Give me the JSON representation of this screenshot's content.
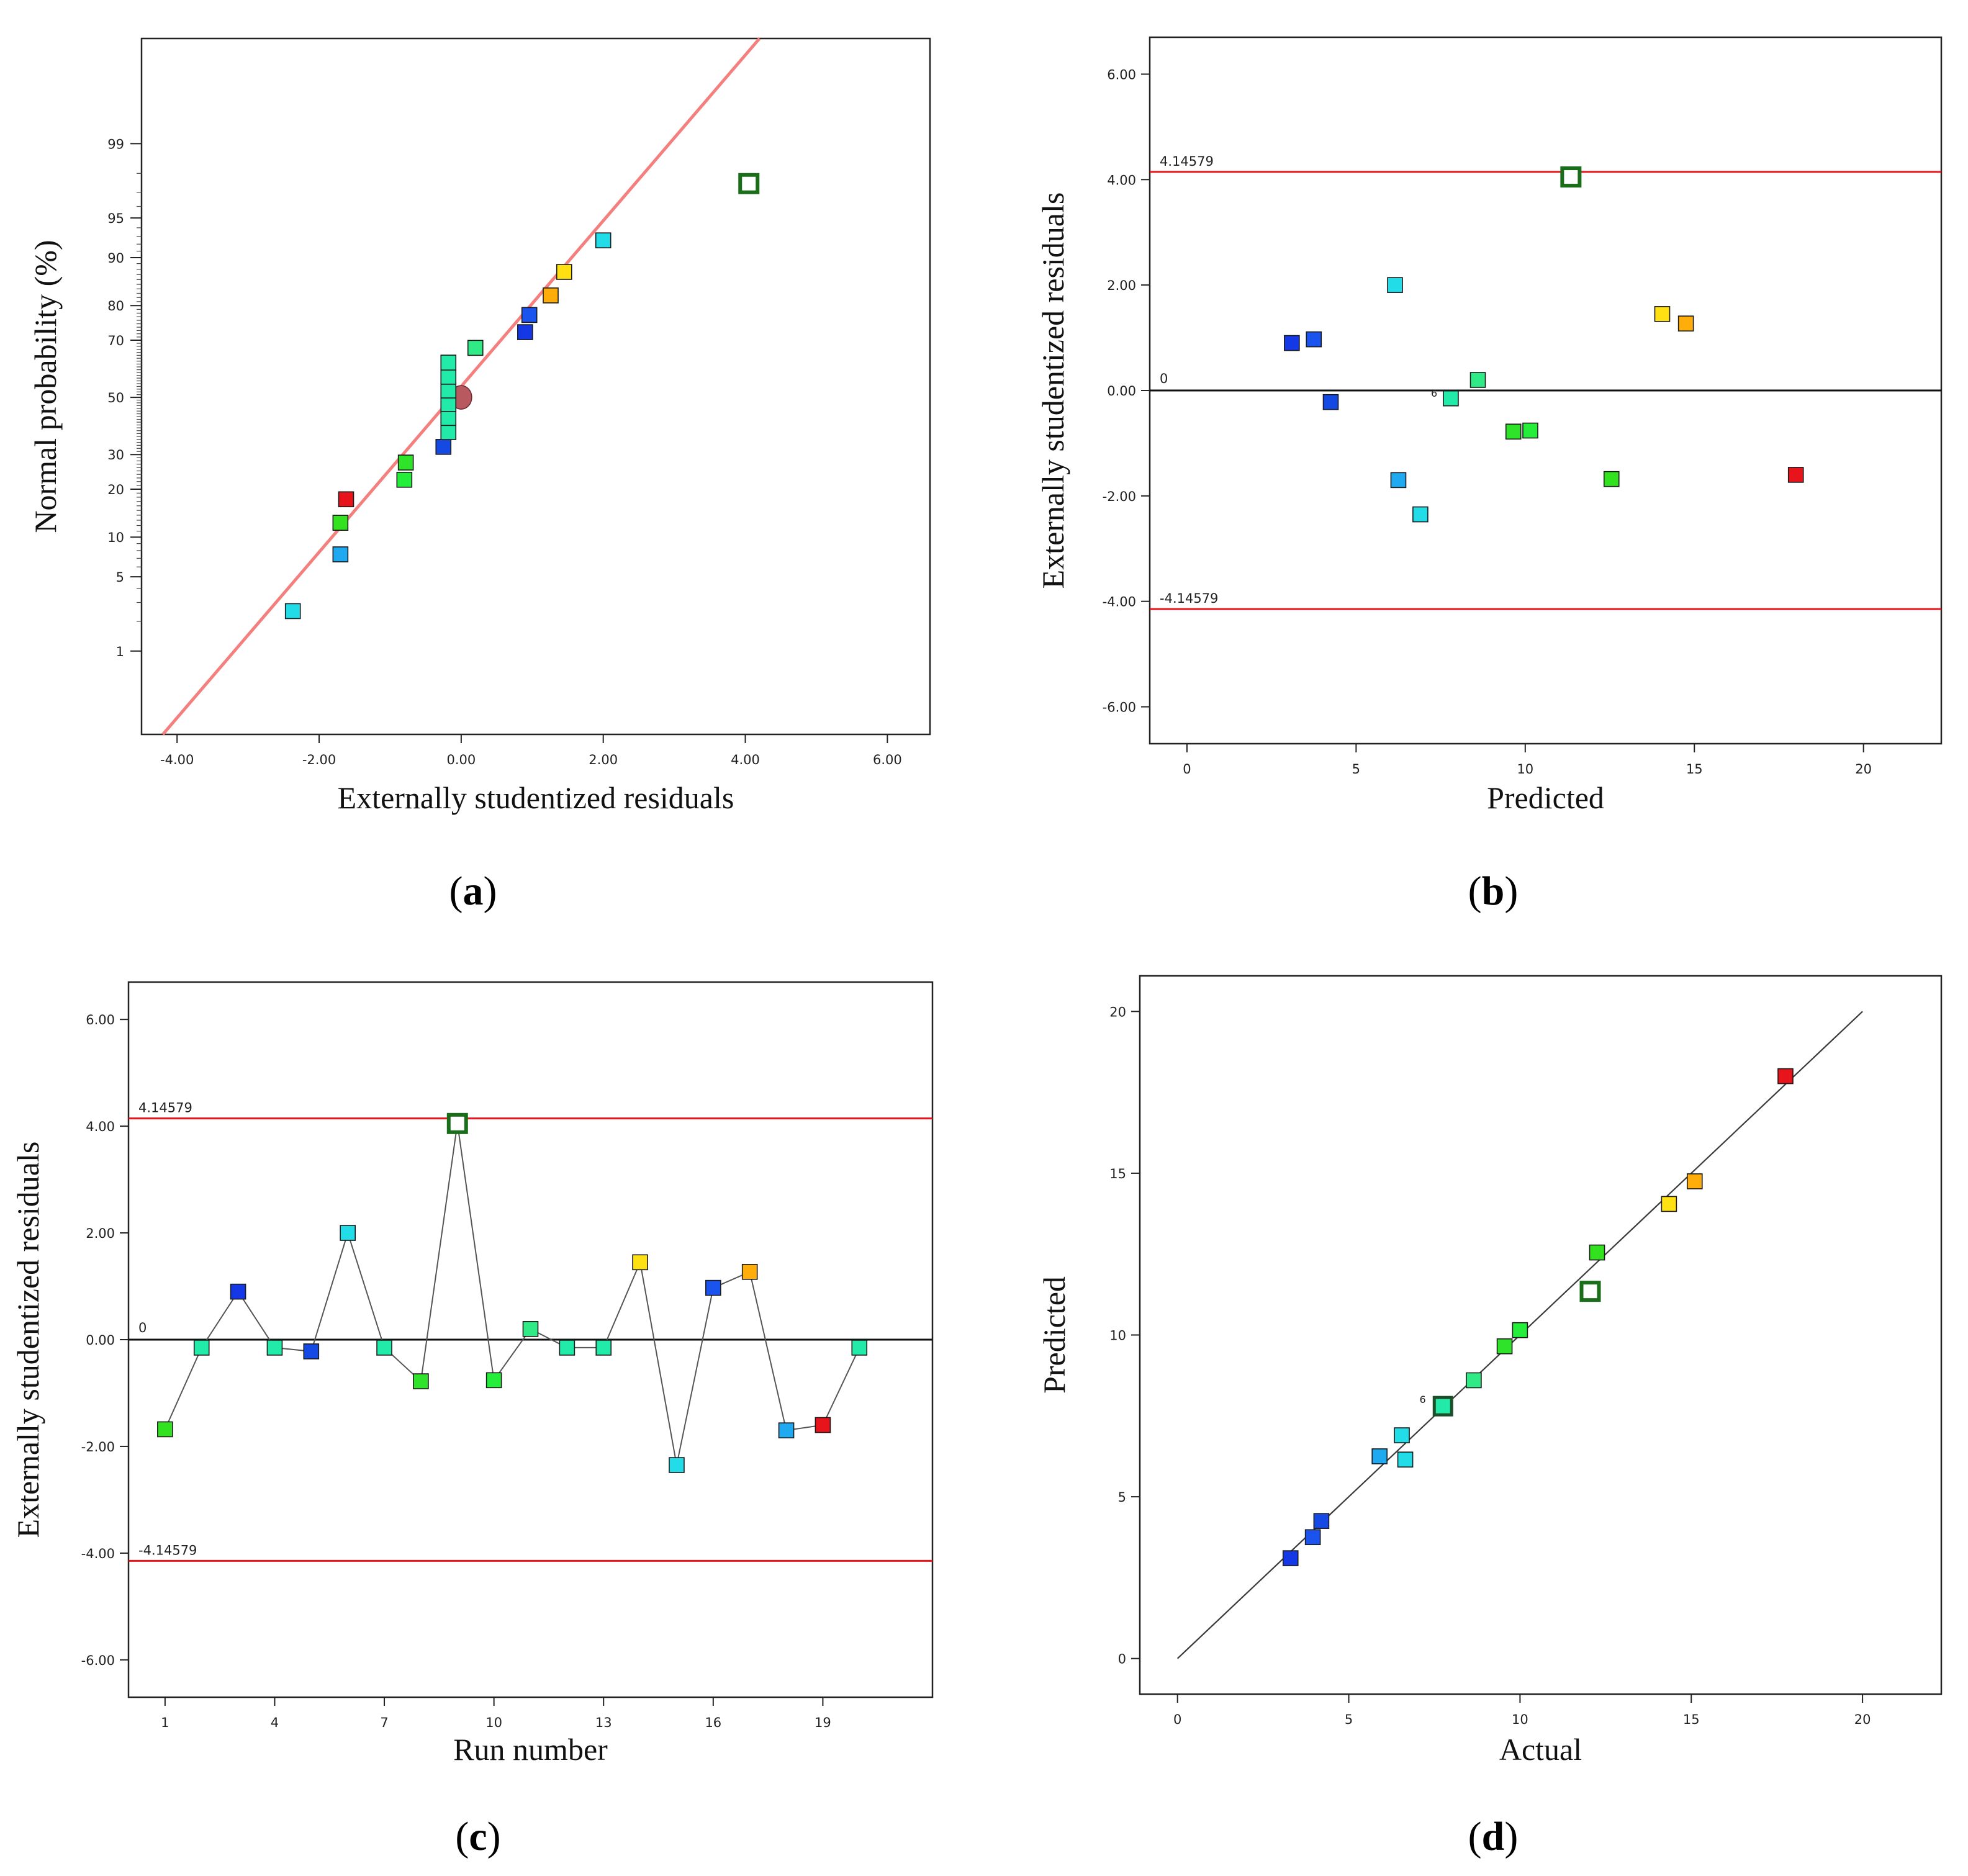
{
  "colors": {
    "red_line": "#e8141c",
    "fit_line": "#f47f7f",
    "zero_line": "#111111",
    "outlier_edge": "#1a6e1a"
  },
  "chart_data": [
    {
      "id": "a",
      "type": "scatter",
      "panel_label": "a",
      "xlabel": "Externally studentized residuals",
      "ylabel": "Normal probability (%)",
      "xlim": [
        -4.5,
        6.6
      ],
      "x_ticks": [
        -4,
        -2,
        0,
        2,
        4,
        6
      ],
      "x_tick_labels": [
        "-4.00",
        "-2.00",
        "0.00",
        "2.00",
        "4.00",
        "6.00"
      ],
      "y_scale": "probit",
      "ylim_percent": [
        0.1,
        99.95
      ],
      "y_ticks": [
        1,
        5,
        10,
        20,
        30,
        50,
        70,
        80,
        90,
        95,
        99
      ],
      "y_tick_labels": [
        "1",
        "5",
        "10",
        "20",
        "30",
        "50",
        "70",
        "80",
        "90",
        "95",
        "99"
      ],
      "fit_line": {
        "x1": -4.2,
        "x2": 4.2
      },
      "median_marker": {
        "x": 0.0,
        "y": 50,
        "color": "#b8585f"
      },
      "points": [
        {
          "x": -2.37,
          "y": 2.5,
          "color": "#22dde8"
        },
        {
          "x": -1.7,
          "y": 7.5,
          "color": "#1fa9f0"
        },
        {
          "x": -1.7,
          "y": 12.5,
          "color": "#33e21f"
        },
        {
          "x": -1.62,
          "y": 17.5,
          "color": "#e8141c"
        },
        {
          "x": -0.8,
          "y": 22.5,
          "color": "#24ee3a"
        },
        {
          "x": -0.78,
          "y": 27.5,
          "color": "#2fe22a"
        },
        {
          "x": -0.25,
          "y": 32.5,
          "color": "#1449e3"
        },
        {
          "x": -0.18,
          "y": 37.5,
          "color": "#22eaa8"
        },
        {
          "x": -0.18,
          "y": 42.5,
          "color": "#22eaa8"
        },
        {
          "x": -0.18,
          "y": 47.5,
          "color": "#22eaa8"
        },
        {
          "x": -0.18,
          "y": 52.5,
          "color": "#22eaa8"
        },
        {
          "x": -0.18,
          "y": 57.5,
          "color": "#22eaa8"
        },
        {
          "x": -0.18,
          "y": 62.5,
          "color": "#22eaa8"
        },
        {
          "x": 0.2,
          "y": 67.5,
          "color": "#30ea86"
        },
        {
          "x": 0.9,
          "y": 72.5,
          "color": "#1438e6"
        },
        {
          "x": 0.96,
          "y": 77.5,
          "color": "#1b53ee"
        },
        {
          "x": 1.26,
          "y": 82.5,
          "color": "#ffad0a"
        },
        {
          "x": 1.45,
          "y": 87.5,
          "color": "#ffe012"
        },
        {
          "x": 2.0,
          "y": 92.5,
          "color": "#22dde8"
        },
        {
          "x": 4.05,
          "y": 97.5,
          "color": "#ffffff",
          "outlier": true
        }
      ]
    },
    {
      "id": "b",
      "type": "scatter",
      "panel_label": "b",
      "xlabel": "Predicted",
      "ylabel": "Externally studentized residuals",
      "xlim": [
        -1.1,
        22.3
      ],
      "ylim": [
        -6.7,
        6.7
      ],
      "x_ticks": [
        0,
        5,
        10,
        15,
        20
      ],
      "x_tick_labels": [
        "0",
        "5",
        "10",
        "15",
        "20"
      ],
      "y_ticks": [
        -6,
        -4,
        -2,
        0,
        2,
        4,
        6
      ],
      "y_tick_labels": [
        "-6.00",
        "-4.00",
        "-2.00",
        "0.00",
        "2.00",
        "4.00",
        "6.00"
      ],
      "upper_limit": 4.14579,
      "upper_limit_label": "4.14579",
      "lower_limit": -4.14579,
      "lower_limit_label": "-4.14579",
      "zero_label": "0",
      "annotation": {
        "text": "6",
        "x": 7.4,
        "y": -0.12
      },
      "points": [
        {
          "x": 3.1,
          "y": 0.9,
          "color": "#1438e6"
        },
        {
          "x": 3.75,
          "y": 0.97,
          "color": "#1b53ee"
        },
        {
          "x": 4.25,
          "y": -0.22,
          "color": "#1449e3"
        },
        {
          "x": 6.15,
          "y": 2.0,
          "color": "#22dde8"
        },
        {
          "x": 6.25,
          "y": -1.7,
          "color": "#1fa9f0"
        },
        {
          "x": 6.9,
          "y": -2.35,
          "color": "#22dde8"
        },
        {
          "x": 7.8,
          "y": -0.15,
          "color": "#22eaa8"
        },
        {
          "x": 8.6,
          "y": 0.2,
          "color": "#30ea86"
        },
        {
          "x": 9.65,
          "y": -0.78,
          "color": "#2fe22a"
        },
        {
          "x": 10.15,
          "y": -0.76,
          "color": "#24ee3a"
        },
        {
          "x": 11.35,
          "y": 4.05,
          "color": "#ffffff",
          "outlier": true
        },
        {
          "x": 12.55,
          "y": -1.68,
          "color": "#33e21f"
        },
        {
          "x": 14.05,
          "y": 1.45,
          "color": "#ffe012"
        },
        {
          "x": 14.75,
          "y": 1.27,
          "color": "#ffad0a"
        },
        {
          "x": 18.0,
          "y": -1.6,
          "color": "#e8141c"
        }
      ]
    },
    {
      "id": "c",
      "type": "line",
      "panel_label": "c",
      "xlabel": "Run number",
      "ylabel": "Externally studentized residuals",
      "xlim": [
        0,
        22
      ],
      "ylim": [
        -6.7,
        6.7
      ],
      "x_ticks": [
        1,
        4,
        7,
        10,
        13,
        16,
        19
      ],
      "x_tick_labels": [
        "1",
        "4",
        "7",
        "10",
        "13",
        "16",
        "19"
      ],
      "y_ticks": [
        -6,
        -4,
        -2,
        0,
        2,
        4,
        6
      ],
      "y_tick_labels": [
        "-6.00",
        "-4.00",
        "-2.00",
        "0.00",
        "2.00",
        "4.00",
        "6.00"
      ],
      "upper_limit": 4.14579,
      "upper_limit_label": "4.14579",
      "lower_limit": -4.14579,
      "lower_limit_label": "-4.14579",
      "zero_label": "0",
      "points": [
        {
          "x": 1,
          "y": -1.68,
          "color": "#33e21f"
        },
        {
          "x": 2,
          "y": -0.15,
          "color": "#22eaa8"
        },
        {
          "x": 3,
          "y": 0.9,
          "color": "#1438e6"
        },
        {
          "x": 4,
          "y": -0.15,
          "color": "#22eaa8"
        },
        {
          "x": 5,
          "y": -0.22,
          "color": "#1449e3"
        },
        {
          "x": 6,
          "y": 2.0,
          "color": "#22dde8"
        },
        {
          "x": 7,
          "y": -0.15,
          "color": "#22eaa8"
        },
        {
          "x": 8,
          "y": -0.78,
          "color": "#2fe22a"
        },
        {
          "x": 9,
          "y": 4.05,
          "color": "#ffffff",
          "outlier": true
        },
        {
          "x": 10,
          "y": -0.76,
          "color": "#24ee3a"
        },
        {
          "x": 11,
          "y": 0.2,
          "color": "#30ea86"
        },
        {
          "x": 12,
          "y": -0.15,
          "color": "#22eaa8"
        },
        {
          "x": 13,
          "y": -0.15,
          "color": "#22eaa8"
        },
        {
          "x": 14,
          "y": 1.45,
          "color": "#ffe012"
        },
        {
          "x": 15,
          "y": -2.35,
          "color": "#22dde8"
        },
        {
          "x": 16,
          "y": 0.97,
          "color": "#1b53ee"
        },
        {
          "x": 17,
          "y": 1.27,
          "color": "#ffad0a"
        },
        {
          "x": 18,
          "y": -1.7,
          "color": "#1fa9f0"
        },
        {
          "x": 19,
          "y": -1.6,
          "color": "#e8141c"
        },
        {
          "x": 20,
          "y": -0.15,
          "color": "#22eaa8"
        }
      ]
    },
    {
      "id": "d",
      "type": "scatter",
      "panel_label": "d",
      "xlabel": "Actual",
      "ylabel": "Predicted",
      "xlim": [
        -1.1,
        22.3
      ],
      "ylim": [
        -1.1,
        21.1
      ],
      "x_ticks": [
        0,
        5,
        10,
        15,
        20
      ],
      "x_tick_labels": [
        "0",
        "5",
        "10",
        "15",
        "20"
      ],
      "y_ticks": [
        0,
        5,
        10,
        15,
        20
      ],
      "y_tick_labels": [
        "0",
        "5",
        "10",
        "15",
        "20"
      ],
      "diagonal": [
        0,
        20
      ],
      "annotation": {
        "text": "6",
        "x": 7.25,
        "y": 7.9
      },
      "points": [
        {
          "x": 3.3,
          "y": 3.1,
          "color": "#1438e6"
        },
        {
          "x": 3.95,
          "y": 3.75,
          "color": "#1b53ee"
        },
        {
          "x": 4.2,
          "y": 4.25,
          "color": "#1449e3"
        },
        {
          "x": 5.9,
          "y": 6.25,
          "color": "#1fa9f0"
        },
        {
          "x": 6.55,
          "y": 6.9,
          "color": "#22dde8"
        },
        {
          "x": 6.65,
          "y": 6.15,
          "color": "#22dde8"
        },
        {
          "x": 7.75,
          "y": 7.8,
          "color": "#22eaa8",
          "outlier": true
        },
        {
          "x": 8.65,
          "y": 8.6,
          "color": "#30ea86"
        },
        {
          "x": 9.55,
          "y": 9.65,
          "color": "#2fe22a"
        },
        {
          "x": 10.0,
          "y": 10.15,
          "color": "#24ee3a"
        },
        {
          "x": 12.05,
          "y": 11.35,
          "color": "#ffffff",
          "outlier": true
        },
        {
          "x": 12.25,
          "y": 12.55,
          "color": "#33e21f"
        },
        {
          "x": 14.35,
          "y": 14.05,
          "color": "#ffe012"
        },
        {
          "x": 15.1,
          "y": 14.75,
          "color": "#ffad0a"
        },
        {
          "x": 17.75,
          "y": 18.0,
          "color": "#e8141c"
        }
      ]
    }
  ]
}
